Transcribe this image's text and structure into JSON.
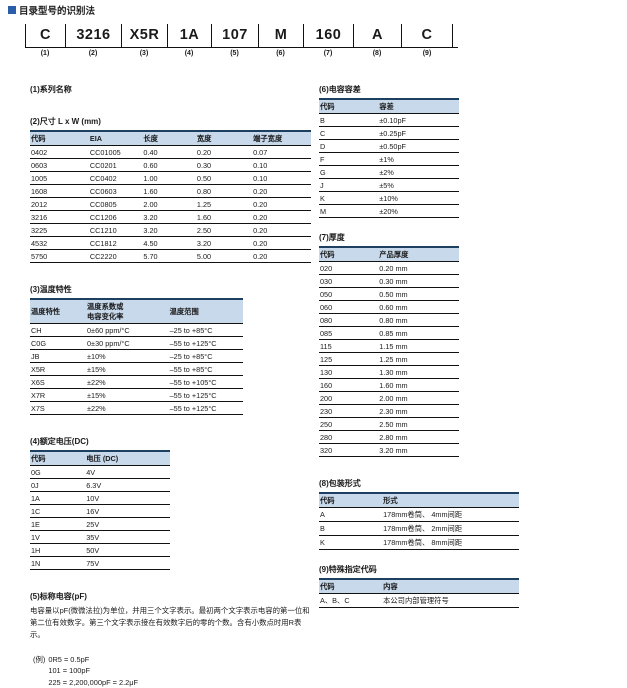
{
  "page": {
    "title": "目录型号的识别法"
  },
  "part_number": {
    "segments": [
      {
        "code": "C",
        "num": "(1)"
      },
      {
        "code": "3216",
        "num": "(2)"
      },
      {
        "code": "X5R",
        "num": "(3)"
      },
      {
        "code": "1A",
        "num": "(4)"
      },
      {
        "code": "107",
        "num": "(5)"
      },
      {
        "code": "M",
        "num": "(6)"
      },
      {
        "code": "160",
        "num": "(7)"
      },
      {
        "code": "A",
        "num": "(8)"
      },
      {
        "code": "C",
        "num": "(9)"
      }
    ]
  },
  "sections": {
    "s1": {
      "title": "(1)系列名称"
    },
    "s2": {
      "title": "(2)尺寸 L x W (mm)",
      "headers": [
        "代码",
        "EIA",
        "长度",
        "宽度",
        "端子宽度"
      ],
      "rows": [
        [
          "0402",
          "CC01005",
          "0.40",
          "0.20",
          "0.07"
        ],
        [
          "0603",
          "CC0201",
          "0.60",
          "0.30",
          "0.10"
        ],
        [
          "1005",
          "CC0402",
          "1.00",
          "0.50",
          "0.10"
        ],
        [
          "1608",
          "CC0603",
          "1.60",
          "0.80",
          "0.20"
        ],
        [
          "2012",
          "CC0805",
          "2.00",
          "1.25",
          "0.20"
        ],
        [
          "3216",
          "CC1206",
          "3.20",
          "1.60",
          "0.20"
        ],
        [
          "3225",
          "CC1210",
          "3.20",
          "2.50",
          "0.20"
        ],
        [
          "4532",
          "CC1812",
          "4.50",
          "3.20",
          "0.20"
        ],
        [
          "5750",
          "CC2220",
          "5.70",
          "5.00",
          "0.20"
        ]
      ]
    },
    "s3": {
      "title": "(3)温度特性",
      "headers": [
        "温度特性",
        "温度系数或\n电容变化率",
        "温度范围"
      ],
      "rows": [
        [
          "CH",
          "0±60 ppm/°C",
          "–25 to +85°C"
        ],
        [
          "C0G",
          "0±30 ppm/°C",
          "–55 to +125°C"
        ],
        [
          "JB",
          "±10%",
          "–25 to +85°C"
        ],
        [
          "X5R",
          "±15%",
          "–55 to +85°C"
        ],
        [
          "X6S",
          "±22%",
          "–55 to +105°C"
        ],
        [
          "X7R",
          "±15%",
          "–55 to +125°C"
        ],
        [
          "X7S",
          "±22%",
          "–55 to +125°C"
        ]
      ]
    },
    "s4": {
      "title": "(4)额定电压(DC)",
      "headers": [
        "代码",
        "电压 (DC)"
      ],
      "rows": [
        [
          "0G",
          "4V"
        ],
        [
          "0J",
          "6.3V"
        ],
        [
          "1A",
          "10V"
        ],
        [
          "1C",
          "16V"
        ],
        [
          "1E",
          "25V"
        ],
        [
          "1V",
          "35V"
        ],
        [
          "1H",
          "50V"
        ],
        [
          "1N",
          "75V"
        ]
      ]
    },
    "s5": {
      "title": "(5)标称电容(pF)",
      "body": "电容量以pF(微微法拉)为单位，并用三个文字表示。最初两个文字表示电容的第一位和第二位有效数字。第三个文字表示接在有效数字后的零的个数。含有小数点时用R表示。",
      "examples_label": "(例)",
      "examples": [
        "0R5 = 0.5pF",
        "101 = 100pF",
        "225 = 2,200,000pF = 2.2μF"
      ]
    },
    "s6": {
      "title": "(6)电容容差",
      "headers": [
        "代码",
        "容差"
      ],
      "rows": [
        [
          "B",
          "±0.10pF"
        ],
        [
          "C",
          "±0.25pF"
        ],
        [
          "D",
          "±0.50pF"
        ],
        [
          "F",
          "±1%"
        ],
        [
          "G",
          "±2%"
        ],
        [
          "J",
          "±5%"
        ],
        [
          "K",
          "±10%"
        ],
        [
          "M",
          "±20%"
        ]
      ]
    },
    "s7": {
      "title": "(7)厚度",
      "headers": [
        "代码",
        "产品厚度"
      ],
      "rows": [
        [
          "020",
          "0.20 mm"
        ],
        [
          "030",
          "0.30 mm"
        ],
        [
          "050",
          "0.50 mm"
        ],
        [
          "060",
          "0.60 mm"
        ],
        [
          "080",
          "0.80 mm"
        ],
        [
          "085",
          "0.85 mm"
        ],
        [
          "115",
          "1.15 mm"
        ],
        [
          "125",
          "1.25 mm"
        ],
        [
          "130",
          "1.30 mm"
        ],
        [
          "160",
          "1.60 mm"
        ],
        [
          "200",
          "2.00 mm"
        ],
        [
          "230",
          "2.30 mm"
        ],
        [
          "250",
          "2.50 mm"
        ],
        [
          "280",
          "2.80 mm"
        ],
        [
          "320",
          "3.20 mm"
        ]
      ]
    },
    "s8": {
      "title": "(8)包装形式",
      "headers": [
        "代码",
        "形式"
      ],
      "rows": [
        [
          "A",
          "178mm卷筒、 4mm间距"
        ],
        [
          "B",
          "178mm卷筒、 2mm间距"
        ],
        [
          "K",
          "178mm卷筒、 8mm间距"
        ]
      ]
    },
    "s9": {
      "title": "(9)特殊指定代码",
      "headers": [
        "代码",
        "内容"
      ],
      "rows": [
        [
          "A、B、C",
          "本公司内部管理符号"
        ]
      ]
    }
  },
  "colors": {
    "accent_blue": "#2a5ea8",
    "table_header_bg": "#c7d9eb",
    "table_top_border": "#1d4061"
  }
}
